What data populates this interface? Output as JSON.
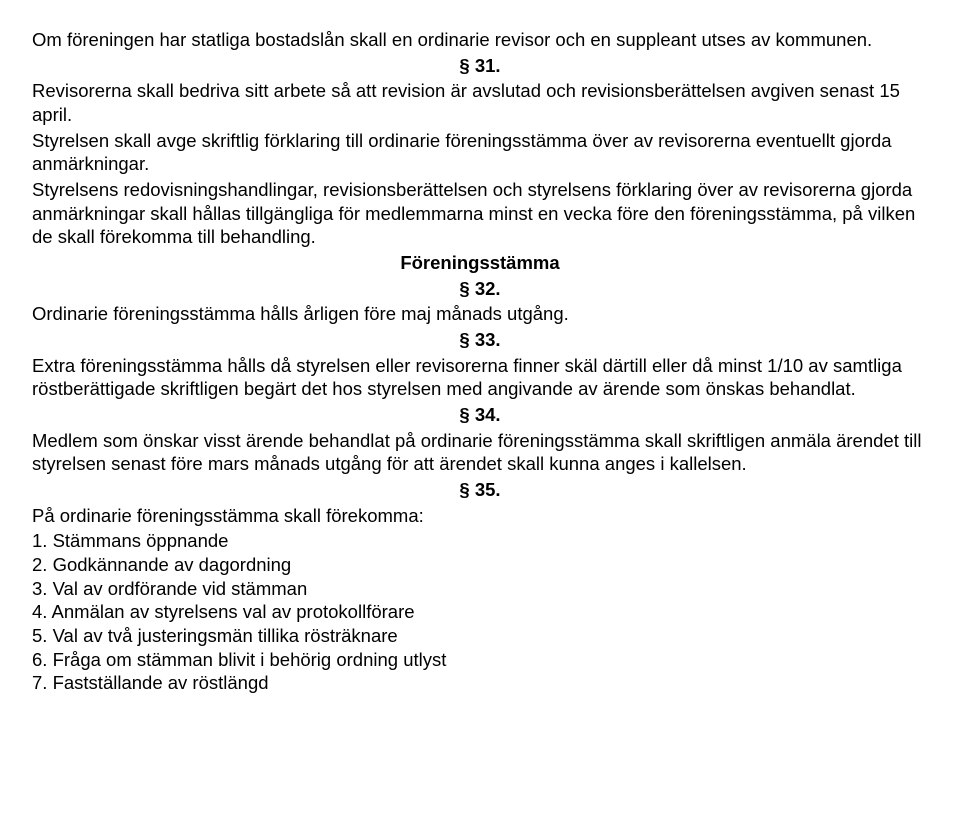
{
  "p30": "Om föreningen har statliga bostadslån skall en ordinarie revisor och en suppleant utses av kommunen.",
  "s31": "§ 31.",
  "p31a": "Revisorerna skall bedriva sitt arbete så att revision är avslutad och revisionsberättelsen avgiven senast 15 april.",
  "p31b": "Styrelsen skall avge skriftlig förklaring till ordinarie föreningsstämma över av revisorerna eventuellt gjorda anmärkningar.",
  "p31c": "Styrelsens redovisningshandlingar, revisionsberättelsen och styrelsens förklaring över av revisorerna gjorda anmärkningar skall hållas tillgängliga för medlemmarna minst en vecka före den föreningsstämma, på vilken de skall förekomma till behandling.",
  "title32": "Föreningsstämma",
  "s32": "§ 32.",
  "p32": "Ordinarie föreningsstämma hålls årligen före maj månads utgång.",
  "s33": "§ 33.",
  "p33": "Extra föreningsstämma hålls då styrelsen eller revisorerna finner skäl därtill eller då minst 1/10 av samtliga röstberättigade skriftligen begärt det hos styrelsen med angivande av ärende som önskas behandlat.",
  "s34": "§ 34.",
  "p34": "Medlem som önskar visst ärende behandlat på ordinarie föreningsstämma skall skriftligen anmäla ärendet till styrelsen senast före mars månads utgång för att ärendet skall kunna anges i kallelsen.",
  "s35": "§ 35.",
  "p35intro": "På ordinarie föreningsstämma skall förekomma:",
  "items": [
    "1. Stämmans öppnande",
    "2. Godkännande av dagordning",
    "3. Val av ordförande vid stämman",
    "4. Anmälan av styrelsens val av protokollförare",
    "5. Val av två justeringsmän tillika rösträknare",
    "6. Fråga om stämman blivit i behörig ordning utlyst",
    "7. Fastställande av röstlängd"
  ]
}
